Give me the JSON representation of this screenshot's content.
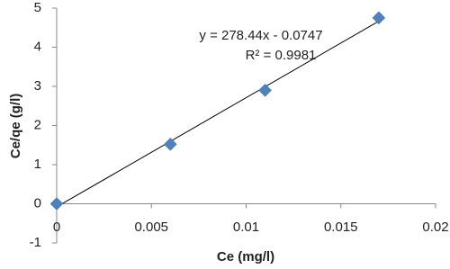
{
  "chart_data": {
    "type": "scatter",
    "x_label": "Ce (mg/l)",
    "y_label": "Ce/qe (g/l)",
    "annotations": [
      "y = 278.44x - 0.0747",
      "R² = 0.9981"
    ],
    "series": [
      {
        "color": "#4f81bd",
        "x": [
          0,
          0.006,
          0.011,
          0.017
        ],
        "values": [
          0,
          1.52,
          2.9,
          4.75
        ]
      }
    ],
    "trendline": true,
    "xlim": [
      0,
      0.02
    ],
    "xticks": [
      0,
      0.005,
      0.01,
      0.015,
      0.02
    ],
    "ylim": [
      -1,
      5
    ],
    "yticks": [
      -1,
      0,
      1,
      2,
      3,
      4,
      5
    ]
  }
}
